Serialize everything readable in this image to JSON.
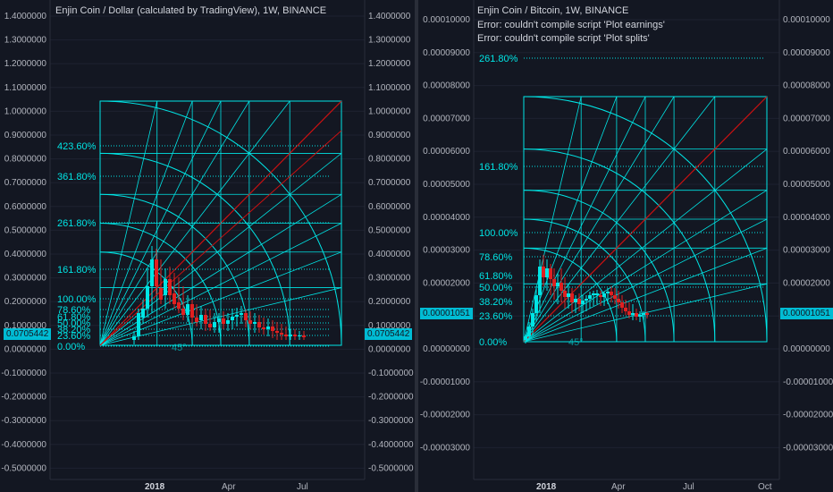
{
  "colors": {
    "background": "#131722",
    "fan": "#00e5e5",
    "up": "#00e5e5",
    "down": "#e02020",
    "trend": "#cc1111",
    "text": "#b2b5be"
  },
  "left": {
    "title": "Enjin Coin / Dollar (calculated by TradingView), 1W, BINANCE",
    "price_tag": "0.0705442",
    "left_axis": [
      "1.4000000",
      "1.3000000",
      "1.2000000",
      "1.1000000",
      "1.0000000",
      "0.9000000",
      "0.8000000",
      "0.7000000",
      "0.6000000",
      "0.5000000",
      "0.4000000",
      "0.3000000",
      "0.2000000",
      "0.1000000",
      "0.0000000",
      "-0.1000000",
      "-0.2000000",
      "-0.3000000",
      "-0.4000000",
      "-0.5000000"
    ],
    "right_axis": [
      "1.4000000",
      "1.3000000",
      "1.2000000",
      "1.1000000",
      "1.0000000",
      "0.9000000",
      "0.8000000",
      "0.7000000",
      "0.6000000",
      "0.5000000",
      "0.4000000",
      "0.3000000",
      "0.2000000",
      "0.1000000",
      "0.0000000",
      "-0.1000000",
      "-0.2000000",
      "-0.3000000",
      "-0.4000000",
      "-0.5000000"
    ],
    "fib_levels": [
      "423.60%",
      "361.80%",
      "261.80%",
      "161.80%",
      "100.00%",
      "78.60%",
      "61.80%",
      "50.00%",
      "38.20%",
      "23.60%",
      "0.00%"
    ],
    "fan_angle_label": "45°",
    "dates": [
      "2018",
      "Apr",
      "Jul"
    ]
  },
  "right": {
    "title": "Enjin Coin / Bitcoin, 1W, BINANCE",
    "errors": [
      "Error: couldn't compile script 'Plot earnings'",
      "Error: couldn't compile script 'Plot splits'"
    ],
    "price_tag": "0.00001051",
    "left_axis": [
      "0.00010000",
      "0.00009000",
      "0.00008000",
      "0.00007000",
      "0.00006000",
      "0.00005000",
      "0.00004000",
      "0.00003000",
      "0.00002000",
      "0.00001000",
      "0.00000000",
      "-0.00001000",
      "-0.00002000",
      "-0.00003000"
    ],
    "right_axis": [
      "0.00010000",
      "0.00009000",
      "0.00008000",
      "0.00007000",
      "0.00006000",
      "0.00005000",
      "0.00004000",
      "0.00003000",
      "0.00002000",
      "0.00001000",
      "0.00000000",
      "-0.00001000",
      "-0.00002000",
      "-0.00003000"
    ],
    "fib_levels": [
      "261.80%",
      "161.80%",
      "100.00%",
      "78.60%",
      "61.80%",
      "50.00%",
      "38.20%",
      "23.60%",
      "0.00%"
    ],
    "fan_angle_label": "45°",
    "dates": [
      "2018",
      "Apr",
      "Jul",
      "Oct"
    ]
  }
}
